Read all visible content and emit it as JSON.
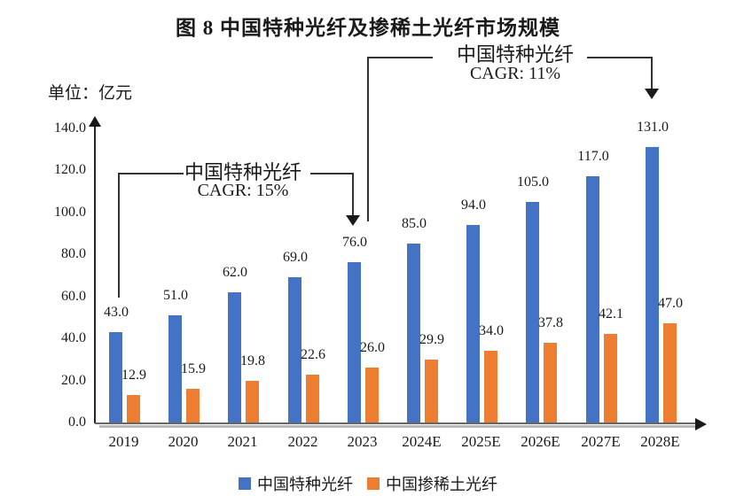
{
  "title": "图 8 中国特种光纤及掺稀土光纤市场规模",
  "unit_label": "单位：亿元",
  "annotations": [
    {
      "line1": "中国特种光纤",
      "line2": "CAGR: 15%"
    },
    {
      "line1": "中国特种光纤",
      "line2": "CAGR: 11%"
    }
  ],
  "chart_data": {
    "type": "bar",
    "title": "图 8 中国特种光纤及掺稀土光纤市场规模",
    "ylabel": "单位：亿元",
    "categories": [
      "2019",
      "2020",
      "2021",
      "2022",
      "2023",
      "2024E",
      "2025E",
      "2026E",
      "2027E",
      "2028E"
    ],
    "series": [
      {
        "name": "中国特种光纤",
        "color": "#4472C4",
        "values": [
          43.0,
          51.0,
          62.0,
          69.0,
          76.0,
          85.0,
          94.0,
          105.0,
          117.0,
          131.0
        ]
      },
      {
        "name": "中国掺稀土光纤",
        "color": "#ED7D31",
        "values": [
          12.9,
          15.9,
          19.8,
          22.6,
          26.0,
          29.9,
          34.0,
          37.8,
          42.1,
          47.0
        ]
      }
    ],
    "yticks": [
      0.0,
      20.0,
      40.0,
      60.0,
      80.0,
      100.0,
      120.0,
      140.0
    ],
    "ylim": [
      0,
      140
    ],
    "grid": false,
    "value_labels": true,
    "legend_position": "bottom",
    "annotations": [
      {
        "text": "中国特种光纤 CAGR: 15%",
        "from": "2019",
        "to": "2023"
      },
      {
        "text": "中国特种光纤 CAGR: 11%",
        "from": "2023",
        "to": "2028E"
      }
    ]
  }
}
